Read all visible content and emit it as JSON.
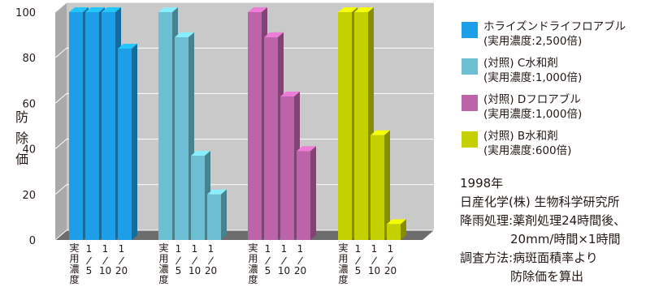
{
  "chart_data": {
    "type": "bar",
    "ylabel": "防除価",
    "ylim": [
      0,
      100
    ],
    "yticks": [
      0,
      20,
      40,
      60,
      80,
      100
    ],
    "categories": [
      "実用濃度",
      "1/5",
      "1/10",
      "1/20"
    ],
    "category_labels": [
      {
        "kind": "vertical",
        "chars": [
          "実",
          "用",
          "濃",
          "度"
        ]
      },
      {
        "kind": "fraction",
        "num": "1",
        "den": "5"
      },
      {
        "kind": "fraction",
        "num": "1",
        "den": "10"
      },
      {
        "kind": "fraction",
        "num": "1",
        "den": "20"
      }
    ],
    "series": [
      {
        "name": "ホライズンドライフロアブル",
        "detail": "(実用濃度:2,500倍)",
        "color": "#1c9ee8",
        "values": [
          100,
          100,
          100,
          84
        ]
      },
      {
        "name": "(対照) C水和剤",
        "detail": "(実用濃度:1,000倍)",
        "color": "#6cbfd3",
        "values": [
          100,
          89,
          37,
          20
        ]
      },
      {
        "name": "(対照) Dフロアブル",
        "detail": "(実用濃度:1,000倍)",
        "color": "#bd63aa",
        "values": [
          100,
          89,
          63,
          39
        ]
      },
      {
        "name": "(対照) B水和剤",
        "detail": "(実用濃度:600倍)",
        "color": "#c5d000",
        "values": [
          100,
          100,
          46,
          7
        ]
      }
    ],
    "grid": true,
    "legend_position": "right"
  },
  "note": {
    "year": "1998年",
    "institute": "日産化学(株) 生物科学研究所",
    "rain_label": "降雨処理:",
    "rain_line1": "薬剤処理24時間後、",
    "rain_line2": "20mm/時間×1時間",
    "method_label": "調査方法:",
    "method_line1": "病斑面積率より",
    "method_line2": "防除価を算出"
  }
}
